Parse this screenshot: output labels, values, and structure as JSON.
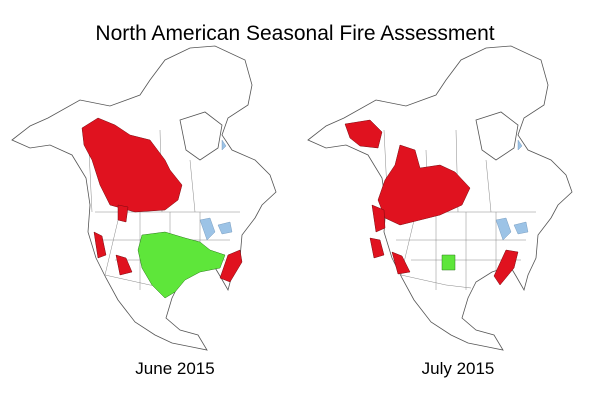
{
  "title": "North American Seasonal Fire Assessment",
  "maps": [
    {
      "label": "June 2015"
    },
    {
      "label": "July 2015"
    }
  ]
}
